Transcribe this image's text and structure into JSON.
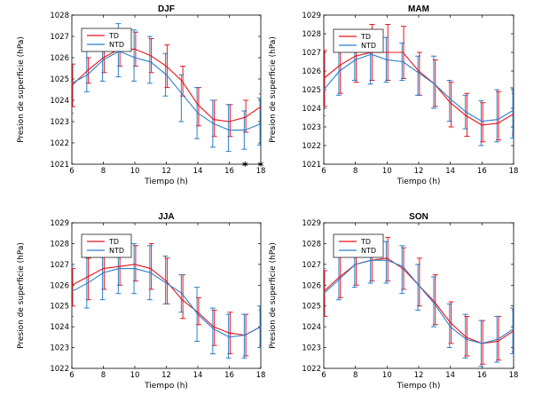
{
  "chart_data": [
    {
      "type": "line",
      "title": "DJF",
      "xlabel": "Tiempo (h)",
      "ylabel": "Presion de superficie (hPa)",
      "xlim": [
        6,
        18
      ],
      "ylim": [
        1021,
        1028
      ],
      "xticks": [
        "6",
        "8",
        "10",
        "12",
        "14",
        "16",
        "18"
      ],
      "yticks": [
        "1021",
        "1022",
        "1023",
        "1024",
        "1025",
        "1026",
        "1027",
        "1028"
      ],
      "legend": [
        "TD",
        "NTD"
      ],
      "x": [
        6,
        7,
        8,
        9,
        10,
        11,
        12,
        13,
        14,
        15,
        16,
        17,
        18
      ],
      "series": [
        {
          "name": "TD",
          "color": "#e8141e",
          "values": [
            1024.7,
            1025.4,
            1026.0,
            1026.4,
            1026.4,
            1026.1,
            1025.6,
            1024.9,
            1023.8,
            1023.1,
            1023.0,
            1023.2,
            1023.7
          ],
          "err_lo": [
            1023.7,
            1024.8,
            1025.3,
            1025.6,
            1025.6,
            1025.3,
            1024.6,
            1024.2,
            1022.8,
            1022.3,
            1022.3,
            1022.5,
            1022.9
          ],
          "err_hi": [
            1025.7,
            1026.0,
            1026.7,
            1027.2,
            1027.2,
            1026.9,
            1026.6,
            1025.6,
            1024.6,
            1024.0,
            1023.8,
            1024.0,
            1024.3
          ]
        },
        {
          "name": "NTD",
          "color": "#2a7fc9",
          "values": [
            1024.8,
            1025.2,
            1025.9,
            1026.3,
            1026.0,
            1025.8,
            1025.2,
            1024.3,
            1023.4,
            1022.9,
            1022.6,
            1022.6,
            1022.9
          ],
          "err_lo": [
            1023.4,
            1024.4,
            1024.9,
            1025.1,
            1024.9,
            1024.8,
            1024.2,
            1023.0,
            1022.2,
            1021.8,
            1021.6,
            1021.7,
            1021.9
          ],
          "err_hi": [
            1025.6,
            1026.3,
            1026.9,
            1027.6,
            1027.3,
            1027.0,
            1026.2,
            1025.2,
            1024.6,
            1024.0,
            1023.8,
            1023.5,
            1024.1
          ]
        }
      ],
      "annotations": [
        {
          "text": "*",
          "x": 17
        },
        {
          "text": "*",
          "x": 18
        }
      ]
    },
    {
      "type": "line",
      "title": "MAM",
      "xlabel": "Tiempo (h)",
      "ylabel": "Presion de superficie (hPa)",
      "xlim": [
        6,
        18
      ],
      "ylim": [
        1021,
        1029
      ],
      "xticks": [
        "6",
        "8",
        "10",
        "12",
        "14",
        "16",
        "18"
      ],
      "yticks": [
        "1021",
        "1022",
        "1023",
        "1024",
        "1025",
        "1026",
        "1027",
        "1028",
        "1029"
      ],
      "legend": [
        "TD",
        "NTD"
      ],
      "x": [
        6,
        7,
        8,
        9,
        10,
        11,
        12,
        13,
        14,
        15,
        16,
        17,
        18
      ],
      "series": [
        {
          "name": "TD",
          "color": "#e8141e",
          "values": [
            1025.6,
            1026.3,
            1026.8,
            1027.0,
            1027.0,
            1027.0,
            1026.0,
            1025.3,
            1024.3,
            1023.6,
            1023.1,
            1023.2,
            1023.7
          ],
          "err_lo": [
            1024.1,
            1024.8,
            1025.4,
            1025.5,
            1025.5,
            1025.6,
            1024.7,
            1024.1,
            1023.0,
            1022.5,
            1022.2,
            1022.3,
            1022.6
          ],
          "err_hi": [
            1027.1,
            1027.2,
            1027.8,
            1028.5,
            1028.5,
            1028.4,
            1027.0,
            1026.6,
            1025.4,
            1024.8,
            1024.3,
            1024.9,
            1024.8
          ]
        },
        {
          "name": "NTD",
          "color": "#2a7fc9",
          "values": [
            1025.0,
            1026.0,
            1026.6,
            1026.9,
            1026.6,
            1026.5,
            1025.9,
            1025.3,
            1024.5,
            1023.8,
            1023.3,
            1023.4,
            1023.9
          ],
          "err_lo": [
            1023.6,
            1024.7,
            1025.5,
            1025.3,
            1025.4,
            1025.5,
            1024.7,
            1024.0,
            1023.3,
            1022.9,
            1022.0,
            1022.2,
            1022.4
          ],
          "err_hi": [
            1026.3,
            1027.2,
            1027.6,
            1027.9,
            1027.8,
            1027.5,
            1026.8,
            1026.8,
            1025.5,
            1024.7,
            1024.4,
            1025.0,
            1025.1
          ]
        }
      ]
    },
    {
      "type": "line",
      "title": "JJA",
      "xlabel": "Tiempo (h)",
      "ylabel": "Presion de superficie (hPa)",
      "xlim": [
        6,
        18
      ],
      "ylim": [
        1022,
        1029
      ],
      "xticks": [
        "6",
        "8",
        "10",
        "12",
        "14",
        "16",
        "18"
      ],
      "yticks": [
        "1022",
        "1023",
        "1024",
        "1025",
        "1026",
        "1027",
        "1028",
        "1029"
      ],
      "legend": [
        "TD",
        "NTD"
      ],
      "x": [
        6,
        7,
        8,
        9,
        10,
        11,
        12,
        13,
        14,
        15,
        16,
        17,
        18
      ],
      "series": [
        {
          "name": "TD",
          "color": "#e8141e",
          "values": [
            1026.0,
            1026.4,
            1026.8,
            1026.9,
            1027.0,
            1026.8,
            1026.2,
            1025.3,
            1024.7,
            1024.0,
            1023.7,
            1023.6,
            1024.0
          ],
          "err_lo": [
            1025.0,
            1025.3,
            1025.8,
            1026.0,
            1026.2,
            1025.8,
            1025.1,
            1024.4,
            1024.1,
            1023.1,
            1022.7,
            1022.6,
            1023.1
          ],
          "err_hi": [
            1026.8,
            1027.3,
            1027.6,
            1027.8,
            1027.9,
            1028.0,
            1027.3,
            1026.5,
            1025.4,
            1024.8,
            1024.7,
            1024.6,
            1024.8
          ]
        },
        {
          "name": "NTD",
          "color": "#2a7fc9",
          "values": [
            1025.7,
            1026.1,
            1026.6,
            1026.8,
            1026.8,
            1026.6,
            1026.1,
            1025.6,
            1024.6,
            1023.9,
            1023.5,
            1023.6,
            1024.0
          ],
          "err_lo": [
            1024.5,
            1024.9,
            1025.3,
            1025.6,
            1025.6,
            1025.3,
            1025.1,
            1024.7,
            1023.3,
            1022.7,
            1022.5,
            1022.5,
            1023.0
          ],
          "err_hi": [
            1026.9,
            1027.5,
            1027.8,
            1027.8,
            1028.0,
            1027.9,
            1027.4,
            1026.5,
            1025.9,
            1024.9,
            1024.6,
            1024.6,
            1025.0
          ]
        }
      ]
    },
    {
      "type": "line",
      "title": "SON",
      "xlabel": "Tiempo (h)",
      "ylabel": "Presion de superficie (hPa)",
      "xlim": [
        6,
        18
      ],
      "ylim": [
        1022,
        1029
      ],
      "xticks": [
        "6",
        "8",
        "10",
        "12",
        "14",
        "16",
        "18"
      ],
      "yticks": [
        "1022",
        "1023",
        "1024",
        "1025",
        "1026",
        "1027",
        "1028",
        "1029"
      ],
      "legend": [
        "TD",
        "NTD"
      ],
      "x": [
        6,
        7,
        8,
        9,
        10,
        11,
        12,
        13,
        14,
        15,
        16,
        17,
        18
      ],
      "series": [
        {
          "name": "TD",
          "color": "#e8141e",
          "values": [
            1025.7,
            1026.4,
            1027.0,
            1027.2,
            1027.3,
            1026.8,
            1026.0,
            1025.2,
            1024.2,
            1023.5,
            1023.2,
            1023.3,
            1023.8
          ],
          "err_lo": [
            1024.5,
            1025.4,
            1026.0,
            1026.2,
            1026.2,
            1025.8,
            1025.0,
            1024.1,
            1023.2,
            1022.6,
            1022.2,
            1022.4,
            1022.8
          ],
          "err_hi": [
            1026.7,
            1027.4,
            1027.9,
            1027.9,
            1028.3,
            1027.8,
            1027.3,
            1026.5,
            1025.2,
            1024.5,
            1024.3,
            1024.5,
            1024.8
          ]
        },
        {
          "name": "NTD",
          "color": "#2a7fc9",
          "values": [
            1025.6,
            1026.3,
            1027.0,
            1027.2,
            1027.2,
            1026.9,
            1026.0,
            1025.1,
            1024.0,
            1023.4,
            1023.2,
            1023.4,
            1023.9
          ],
          "err_lo": [
            1024.7,
            1025.3,
            1025.9,
            1026.1,
            1026.1,
            1025.6,
            1024.8,
            1024.0,
            1023.0,
            1022.5,
            1022.1,
            1022.3,
            1022.7
          ],
          "err_hi": [
            1026.8,
            1027.4,
            1027.9,
            1028.0,
            1028.1,
            1027.9,
            1027.0,
            1026.4,
            1025.1,
            1024.6,
            1024.3,
            1024.5,
            1024.9
          ]
        }
      ]
    }
  ]
}
